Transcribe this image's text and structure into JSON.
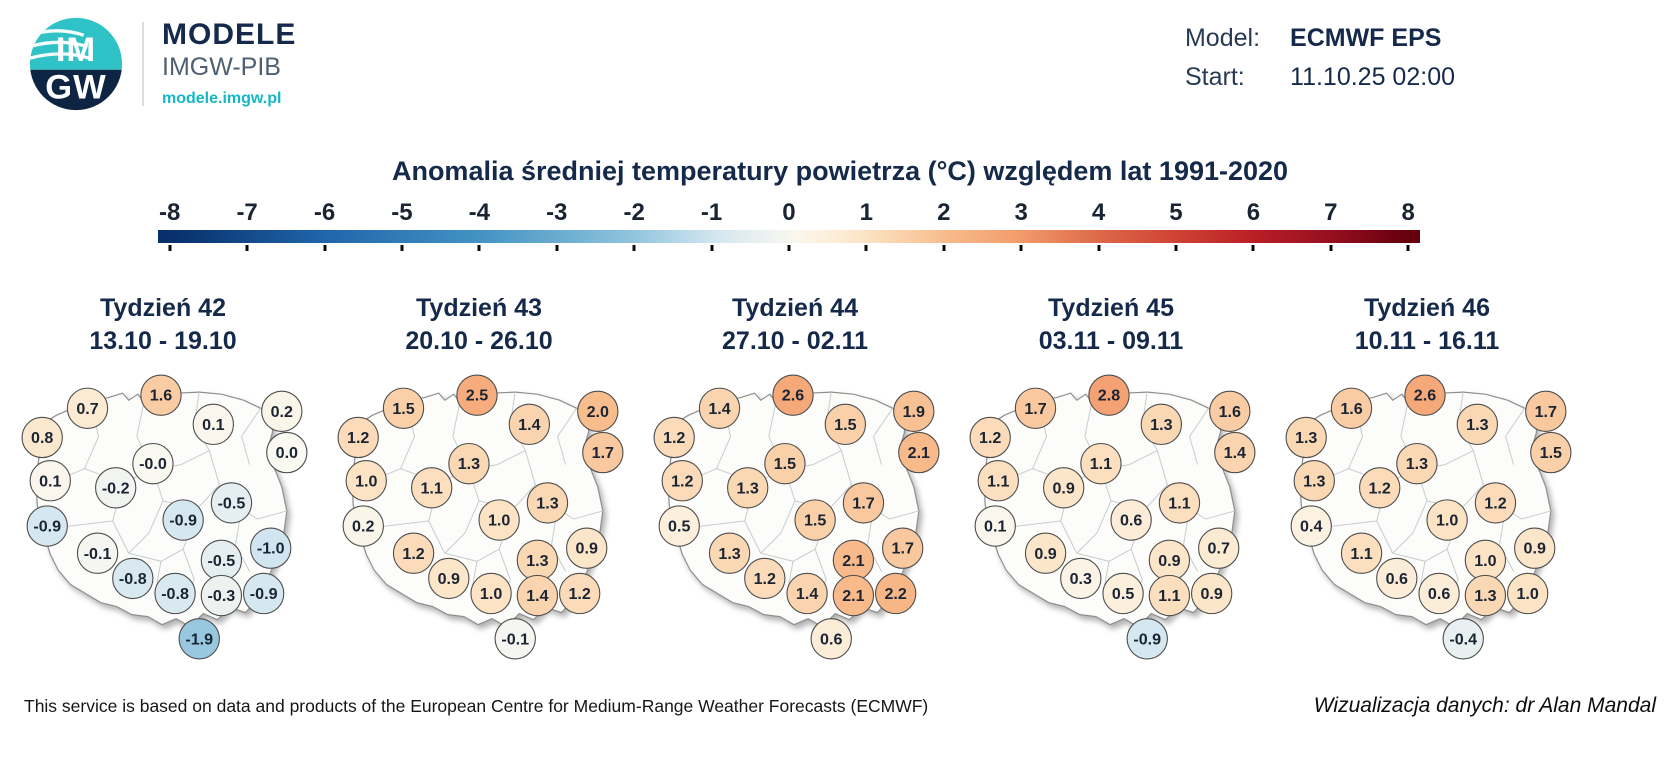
{
  "header": {
    "logo": {
      "top": "IM",
      "bottom": "GW"
    },
    "brand": {
      "name": "MODELE",
      "subtitle": "IMGW-PIB",
      "url": "modele.imgw.pl"
    },
    "model": {
      "label": "Model:",
      "value": "ECMWF EPS"
    },
    "start": {
      "label": "Start:",
      "value": "11.10.25 02:00"
    }
  },
  "title": "Anomalia średniej temperatury powietrza (°C) względem lat 1991-2020",
  "footer": {
    "left": "This service is based on data and products of the European Centre for Medium-Range Weather Forecasts (ECMWF)",
    "right": "Wizualizacja danych: dr Alan Mandal"
  },
  "colors": {
    "navy": "#15294b",
    "teal": "#14b8c4",
    "logo_teal": "#2fc3c7",
    "logo_navy": "#0d2543"
  },
  "chart_data": {
    "type": "heatmap",
    "title": "Anomalia średniej temperatury powietrza (°C) względem lat 1991-2020",
    "unit": "°C",
    "baseline_period": "1991-2020",
    "model": "ECMWF EPS",
    "start": "11.10.25 02:00",
    "colorbar": {
      "min": -8,
      "max": 8,
      "tick_labels": [
        "-8",
        "-7",
        "-6",
        "-5",
        "-4",
        "-3",
        "-2",
        "-1",
        "0",
        "1",
        "2",
        "3",
        "4",
        "5",
        "6",
        "7",
        "8"
      ],
      "stops": [
        {
          "v": -8,
          "c": "#08306b"
        },
        {
          "v": -6,
          "c": "#2166ac"
        },
        {
          "v": -4,
          "c": "#4393c3"
        },
        {
          "v": -2,
          "c": "#92c5de"
        },
        {
          "v": -1,
          "c": "#d1e5f0"
        },
        {
          "v": 0,
          "c": "#f9f8f1"
        },
        {
          "v": 0.5,
          "c": "#fcf0dd"
        },
        {
          "v": 1,
          "c": "#fce3c4"
        },
        {
          "v": 2,
          "c": "#f8bd8d"
        },
        {
          "v": 3,
          "c": "#f39b6c"
        },
        {
          "v": 4,
          "c": "#dd6a4a"
        },
        {
          "v": 5,
          "c": "#d04434"
        },
        {
          "v": 6,
          "c": "#bb1f26"
        },
        {
          "v": 7,
          "c": "#971021"
        },
        {
          "v": 8,
          "c": "#67000d"
        }
      ]
    },
    "marker_positions": [
      [
        75,
        36
      ],
      [
        148,
        23
      ],
      [
        200,
        52
      ],
      [
        268,
        39
      ],
      [
        30,
        65
      ],
      [
        140,
        91
      ],
      [
        273,
        80
      ],
      [
        38,
        108
      ],
      [
        103,
        115
      ],
      [
        218,
        130
      ],
      [
        35,
        153
      ],
      [
        170,
        147
      ],
      [
        85,
        180
      ],
      [
        208,
        187
      ],
      [
        257,
        175
      ],
      [
        120,
        205
      ],
      [
        162,
        220
      ],
      [
        208,
        222
      ],
      [
        250,
        220
      ],
      [
        186,
        265
      ]
    ],
    "weeks": [
      {
        "label": "Tydzień 42",
        "dates": "13.10 - 19.10",
        "values": [
          "0.7",
          "1.6",
          "0.1",
          "0.2",
          "0.8",
          "-0.0",
          "0.0",
          "0.1",
          "-0.2",
          "-0.5",
          "-0.9",
          "-0.9",
          "-0.1",
          "-0.5",
          "-1.0",
          "-0.8",
          "-0.8",
          "-0.3",
          "-0.9",
          "-1.9"
        ]
      },
      {
        "label": "Tydzień 43",
        "dates": "20.10 - 26.10",
        "values": [
          "1.5",
          "2.5",
          "1.4",
          "2.0",
          "1.2",
          "1.3",
          "1.7",
          "1.0",
          "1.1",
          "1.3",
          "0.2",
          "1.0",
          "1.2",
          "1.3",
          "0.9",
          "0.9",
          "1.0",
          "1.4",
          "1.2",
          "-0.1"
        ]
      },
      {
        "label": "Tydzień 44",
        "dates": "27.10 - 02.11",
        "values": [
          "1.4",
          "2.6",
          "1.5",
          "1.9",
          "1.2",
          "1.5",
          "2.1",
          "1.2",
          "1.3",
          "1.7",
          "0.5",
          "1.5",
          "1.3",
          "2.1",
          "1.7",
          "1.2",
          "1.4",
          "2.1",
          "2.2",
          "0.6"
        ]
      },
      {
        "label": "Tydzień 45",
        "dates": "03.11 - 09.11",
        "values": [
          "1.7",
          "2.8",
          "1.3",
          "1.6",
          "1.2",
          "1.1",
          "1.4",
          "1.1",
          "0.9",
          "1.1",
          "0.1",
          "0.6",
          "0.9",
          "0.9",
          "0.7",
          "0.3",
          "0.5",
          "1.1",
          "0.9",
          "-0.9"
        ]
      },
      {
        "label": "Tydzień 46",
        "dates": "10.11 - 16.11",
        "values": [
          "1.6",
          "2.6",
          "1.3",
          "1.7",
          "1.3",
          "1.3",
          "1.5",
          "1.3",
          "1.2",
          "1.2",
          "0.4",
          "1.0",
          "1.1",
          "1.0",
          "0.9",
          "0.6",
          "0.6",
          "1.3",
          "1.0",
          "-0.4"
        ]
      }
    ]
  }
}
